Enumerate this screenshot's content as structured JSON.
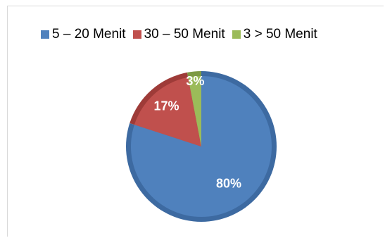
{
  "chart_data": {
    "type": "pie",
    "categories": [
      "5 – 20 Menit",
      "30 – 50 Menit",
      "3 > 50 Menit"
    ],
    "values": [
      80,
      17,
      3
    ],
    "data_labels": [
      "80%",
      "17%",
      "3%"
    ],
    "colors": [
      "#4f81bd",
      "#c0504d",
      "#9bbb59"
    ],
    "edge_colors": [
      "#3d6aa1",
      "#9e3b38",
      "#7d9a44"
    ],
    "legend_position": "top"
  }
}
